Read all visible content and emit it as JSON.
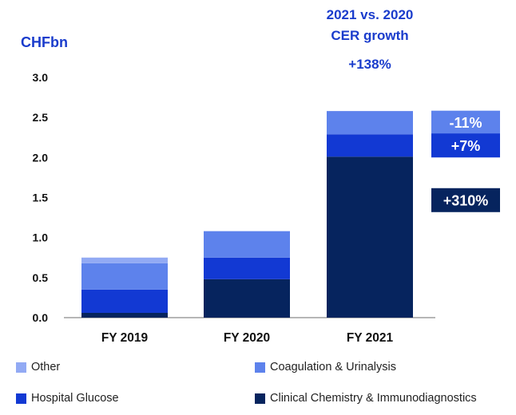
{
  "unit_label": "CHFbn",
  "growth_header": {
    "line1": "2021 vs. 2020",
    "line2": "CER growth",
    "total": "+138%"
  },
  "colors": {
    "other": "#92aaf4",
    "coagulation": "#5d82ec",
    "hospital": "#1239d3",
    "clinical": "#06245e",
    "accent_text": "#1a3ccc"
  },
  "chart_data": {
    "type": "bar",
    "stacked": true,
    "categories": [
      "FY 2019",
      "FY 2020",
      "FY 2021"
    ],
    "ylim": [
      0,
      3.0
    ],
    "yticks": [
      "0.0",
      "0.5",
      "1.0",
      "1.5",
      "2.0",
      "2.5",
      "3.0"
    ],
    "series": [
      {
        "name": "Clinical Chemistry & Immunodiagnostics",
        "values": [
          0.06,
          0.48,
          2.01
        ],
        "color": "#06245e"
      },
      {
        "name": "Hospital Glucose",
        "values": [
          0.29,
          0.27,
          0.28
        ],
        "color": "#1239d3"
      },
      {
        "name": "Coagulation & Urinalysis",
        "values": [
          0.33,
          0.33,
          0.29
        ],
        "color": "#5d82ec"
      },
      {
        "name": "Other",
        "values": [
          0.07,
          0.0,
          0.0
        ],
        "color": "#92aaf4"
      }
    ]
  },
  "badges": [
    {
      "text": "-11%",
      "series": "Coagulation & Urinalysis",
      "color": "#5d82ec"
    },
    {
      "text": "+7%",
      "series": "Hospital Glucose",
      "color": "#1239d3"
    },
    {
      "text": "+310%",
      "series": "Clinical Chemistry & Immunodiagnostics",
      "color": "#06245e"
    }
  ],
  "legend": [
    {
      "label": "Other",
      "color": "#92aaf4"
    },
    {
      "label": "Coagulation & Urinalysis",
      "color": "#5d82ec"
    },
    {
      "label": "Hospital Glucose",
      "color": "#1239d3"
    },
    {
      "label": "Clinical Chemistry & Immunodiagnostics",
      "color": "#06245e"
    }
  ]
}
